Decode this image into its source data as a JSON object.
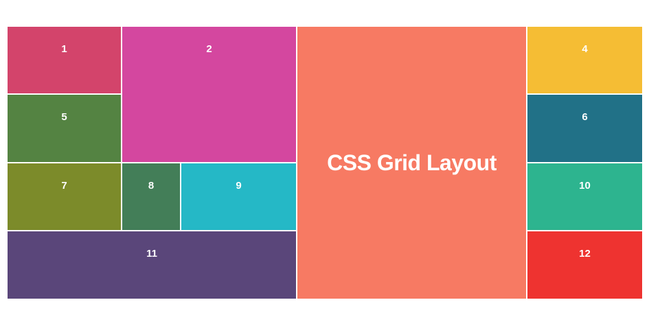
{
  "cells": [
    {
      "label": "1",
      "color": "#d3446b"
    },
    {
      "label": "2",
      "color": "#d4479f"
    },
    {
      "label": "CSS Grid Layout",
      "color": "#f77a63"
    },
    {
      "label": "4",
      "color": "#f5bd34"
    },
    {
      "label": "5",
      "color": "#548342"
    },
    {
      "label": "6",
      "color": "#217187"
    },
    {
      "label": "7",
      "color": "#7c8b2a"
    },
    {
      "label": "8",
      "color": "#437e58"
    },
    {
      "label": "9",
      "color": "#25b8c6"
    },
    {
      "label": "10",
      "color": "#2db48f"
    },
    {
      "label": "11",
      "color": "#5a467a"
    },
    {
      "label": "12",
      "color": "#ee3330"
    }
  ]
}
